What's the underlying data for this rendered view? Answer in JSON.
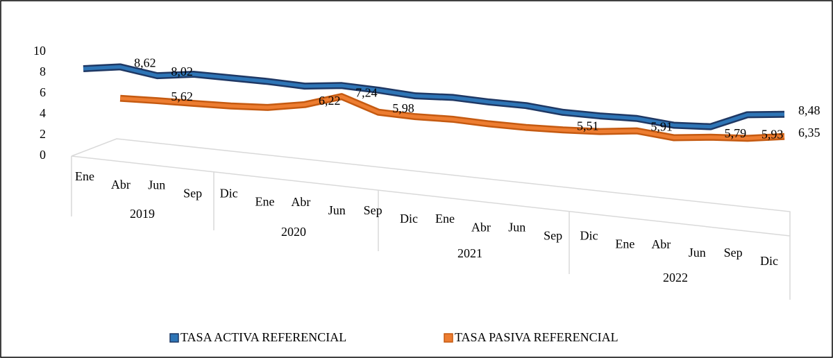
{
  "chart_data": {
    "type": "line",
    "categories": [
      "Ene",
      "Abr",
      "Jun",
      "Sep",
      "Dic",
      "Ene",
      "Abr",
      "Jun",
      "Sep",
      "Dic",
      "Ene",
      "Abr",
      "Jun",
      "Sep",
      "Dic",
      "Ene",
      "Abr",
      "Jun",
      "Sep",
      "Dic"
    ],
    "years": [
      "2019",
      "2020",
      "2021",
      "2022"
    ],
    "series": [
      {
        "name": "TASA ACTIVA REFERENCIAL",
        "color": "#2e75b6",
        "edge": "#1f3864",
        "values": [
          8.2,
          8.62,
          8.02,
          8.4,
          8.3,
          8.2,
          8.0,
          8.3,
          8.1,
          7.8,
          7.9,
          7.7,
          7.6,
          7.2,
          7.1,
          7.1,
          6.7,
          6.8,
          8.2,
          8.48
        ],
        "value_labels": [
          null,
          "8,62",
          "8,02",
          null,
          null,
          null,
          null,
          null,
          null,
          null,
          null,
          null,
          null,
          null,
          null,
          null,
          null,
          null,
          null,
          "8,48"
        ]
      },
      {
        "name": "TASA PASIVA REFERENCIAL",
        "color": "#ed7d31",
        "edge": "#c55a11",
        "values": [
          null,
          5.6,
          5.62,
          5.6,
          5.6,
          5.7,
          6.22,
          7.24,
          5.98,
          5.8,
          5.8,
          5.6,
          5.5,
          5.51,
          5.6,
          5.91,
          5.5,
          5.79,
          5.93,
          6.35
        ],
        "value_labels": [
          null,
          null,
          "5,62",
          null,
          null,
          null,
          "6,22",
          "7,24",
          "5,98",
          null,
          null,
          null,
          null,
          "5,51",
          null,
          "5,91",
          null,
          "5,79",
          "5,93",
          "6,35"
        ]
      }
    ],
    "ylim": [
      0,
      10
    ],
    "yticks": [
      0,
      2,
      4,
      6,
      8,
      10
    ]
  }
}
